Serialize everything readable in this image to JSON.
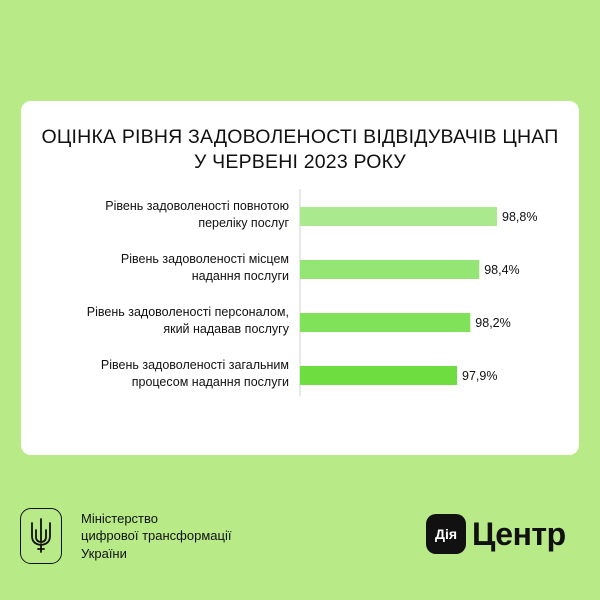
{
  "colors": {
    "background": "#b9ea88",
    "card": "#ffffff",
    "text": "#111111",
    "axis": "#d0d0d0",
    "bar_colors": [
      "#abe98f",
      "#93e574",
      "#7fe259",
      "#6ddd3f"
    ]
  },
  "header": {
    "title_line1": "ОЦІНКА РІВНЯ ЗАДОВОЛЕНОСТІ ВІДВІДУВАЧІВ ЦНАП",
    "title_line2": "У ЧЕРВЕНІ 2023 РОКУ"
  },
  "chart_data": {
    "type": "bar",
    "orientation": "horizontal",
    "title": "ОЦІНКА РІВНЯ ЗАДОВОЛЕНОСТІ ВІДВІДУВАЧІВ ЦНАП У ЧЕРВЕНІ 2023 РОКУ",
    "categories": [
      [
        "Рівень задоволеності повнотою",
        "переліку послуг"
      ],
      [
        "Рівень задоволеності місцем",
        "надання послуги"
      ],
      [
        "Рівень задоволеності персоналом,",
        "який надавав послугу"
      ],
      [
        "Рівень задоволеності загальним",
        "процесом надання послуги"
      ]
    ],
    "values": [
      98.8,
      98.4,
      98.2,
      97.9
    ],
    "value_labels": [
      "98,8%",
      "98,4%",
      "98,2%",
      "97,9%"
    ],
    "xlabel": "",
    "ylabel": "",
    "grid": false,
    "legend": "none"
  },
  "footer": {
    "ministry_line1": "Міністерство",
    "ministry_line2": "цифрової трансформації",
    "ministry_line3": "України",
    "emblem_icon": "trident-icon",
    "brand_badge": "Дія",
    "brand_name": "Центр"
  }
}
